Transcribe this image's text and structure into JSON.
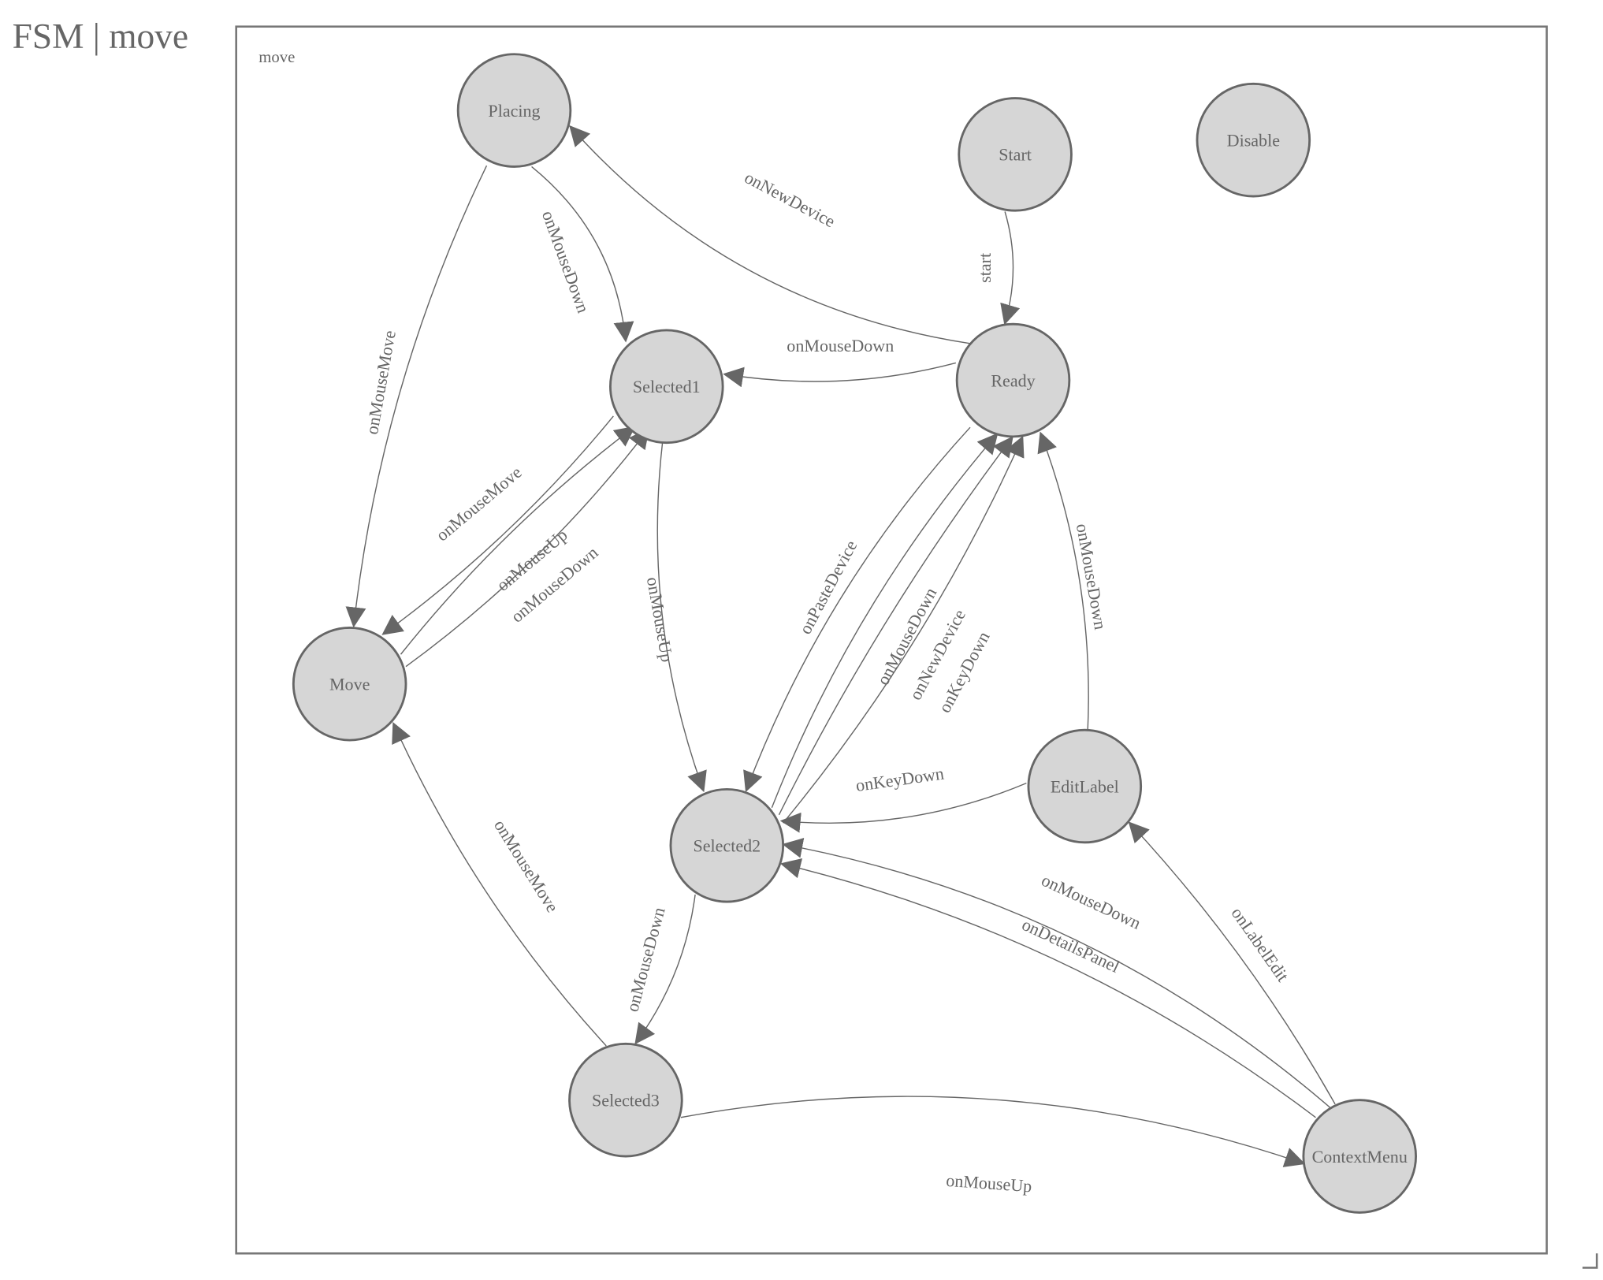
{
  "title": "FSM | move",
  "diagram": {
    "group_label": "move",
    "colors": {
      "node_fill": "#d6d6d6",
      "stroke": "#666666",
      "text": "#666666"
    },
    "nodes": [
      {
        "id": "Placing",
        "label": "Placing"
      },
      {
        "id": "Start",
        "label": "Start"
      },
      {
        "id": "Disable",
        "label": "Disable"
      },
      {
        "id": "Selected1",
        "label": "Selected1"
      },
      {
        "id": "Ready",
        "label": "Ready"
      },
      {
        "id": "Move",
        "label": "Move"
      },
      {
        "id": "Selected2",
        "label": "Selected2"
      },
      {
        "id": "EditLabel",
        "label": "EditLabel"
      },
      {
        "id": "Selected3",
        "label": "Selected3"
      },
      {
        "id": "ContextMenu",
        "label": "ContextMenu"
      }
    ],
    "edges": [
      {
        "from": "Ready",
        "to": "Placing",
        "label": "onNewDevice"
      },
      {
        "from": "Placing",
        "to": "Selected1",
        "label": "onMouseDown"
      },
      {
        "from": "Placing",
        "to": "Move",
        "label": "onMouseMove"
      },
      {
        "from": "Start",
        "to": "Ready",
        "label": "start"
      },
      {
        "from": "Ready",
        "to": "Selected1",
        "label": "onMouseDown"
      },
      {
        "from": "Selected1",
        "to": "Move",
        "label": "onMouseMove"
      },
      {
        "from": "Move",
        "to": "Selected1",
        "label": "onMouseUp"
      },
      {
        "from": "Move",
        "to": "Selected1",
        "label": "onMouseDown"
      },
      {
        "from": "Selected1",
        "to": "Selected2",
        "label": "onMouseUp"
      },
      {
        "from": "Ready",
        "to": "Selected2",
        "label": "onPasteDevice"
      },
      {
        "from": "Selected2",
        "to": "Ready",
        "label": "onMouseDown"
      },
      {
        "from": "Selected2",
        "to": "Ready",
        "label": "onNewDevice"
      },
      {
        "from": "Selected2",
        "to": "Ready",
        "label": "onKeyDown"
      },
      {
        "from": "EditLabel",
        "to": "Ready",
        "label": "onMouseDown"
      },
      {
        "from": "EditLabel",
        "to": "Selected2",
        "label": "onKeyDown"
      },
      {
        "from": "ContextMenu",
        "to": "Selected2",
        "label": "onMouseDown"
      },
      {
        "from": "ContextMenu",
        "to": "Selected2",
        "label": "onDetailsPanel"
      },
      {
        "from": "ContextMenu",
        "to": "EditLabel",
        "label": "onLabelEdit"
      },
      {
        "from": "Selected2",
        "to": "Selected3",
        "label": "onMouseDown"
      },
      {
        "from": "Selected3",
        "to": "Move",
        "label": "onMouseMove"
      },
      {
        "from": "Selected3",
        "to": "ContextMenu",
        "label": "onMouseUp"
      }
    ]
  }
}
